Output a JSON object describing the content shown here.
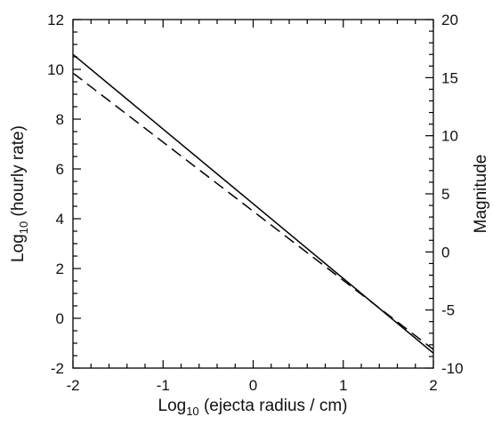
{
  "chart_data": {
    "type": "line",
    "title": "",
    "x": [
      -2,
      2
    ],
    "xlim": [
      -2,
      2
    ],
    "ylim": [
      -2,
      12
    ],
    "y2lim": [
      -10,
      20
    ],
    "xticks": [
      "-2",
      "-1",
      "0",
      "1",
      "2"
    ],
    "yticks": [
      "-2",
      "0",
      "2",
      "4",
      "6",
      "8",
      "10",
      "12"
    ],
    "y2ticks": [
      "-10",
      "-5",
      "0",
      "5",
      "10",
      "15",
      "20"
    ],
    "xlabel": {
      "prefix": "Log",
      "sub": "10",
      "suffix": " (ejecta radius / cm)"
    },
    "ylabel": {
      "prefix": "Log",
      "sub": "10",
      "suffix": " (hourly rate)"
    },
    "y2label": "Magnitude",
    "grid": false,
    "legend": "none",
    "series": [
      {
        "axis": "left",
        "style": "solid",
        "color": "#000000",
        "x": [
          -2,
          2
        ],
        "y": [
          10.6,
          -1.4
        ]
      },
      {
        "axis": "right",
        "style": "dashed",
        "color": "#000000",
        "x": [
          -2,
          2
        ],
        "y": [
          15.4,
          -8.4
        ]
      }
    ]
  }
}
